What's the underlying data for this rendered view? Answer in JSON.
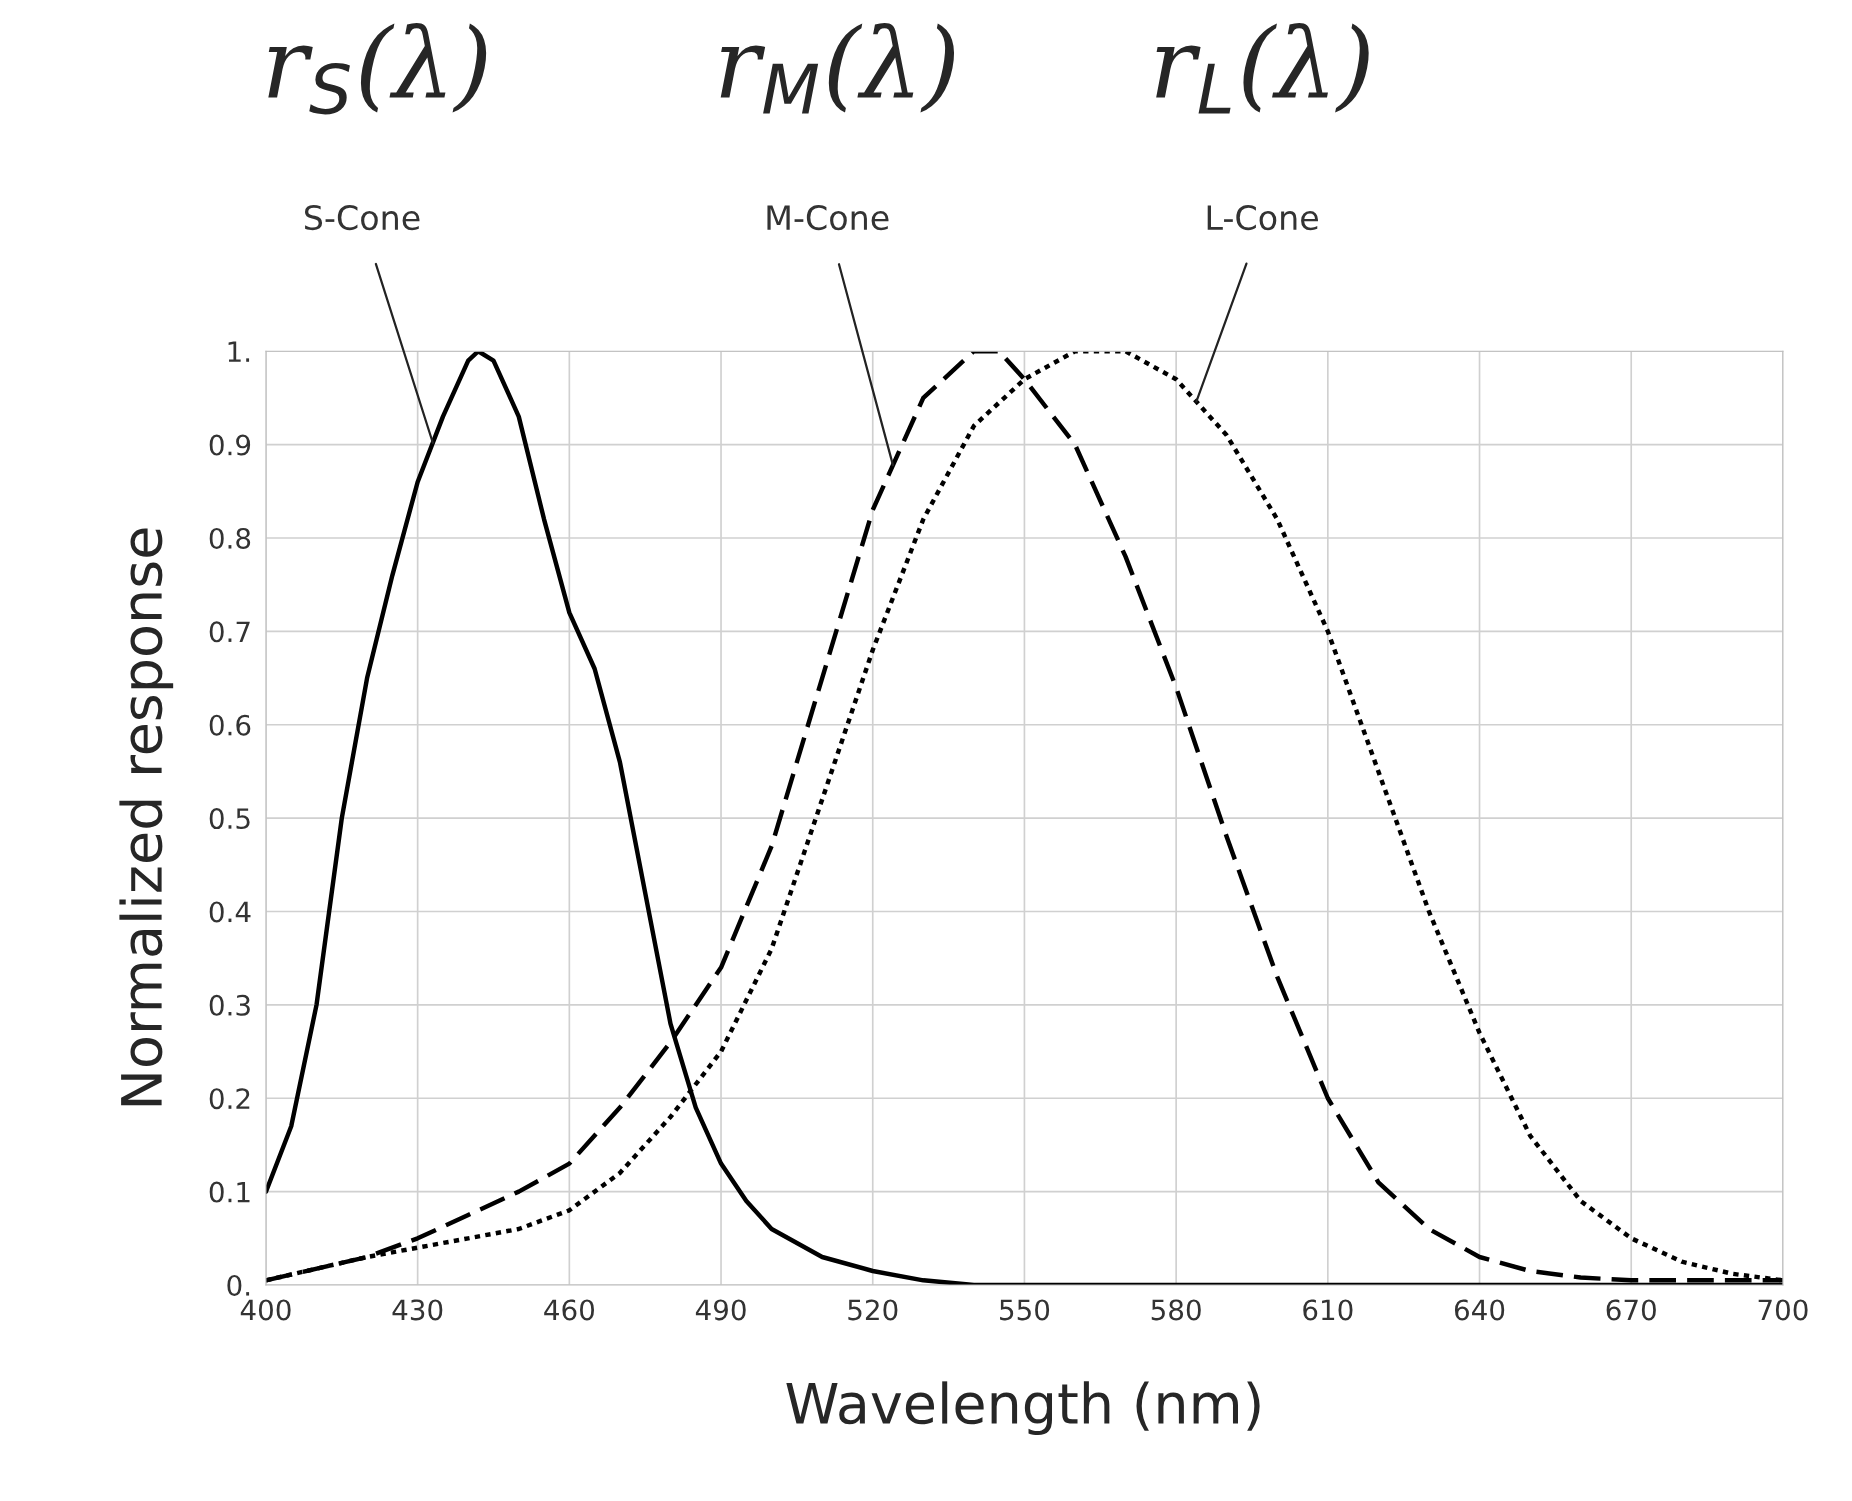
{
  "chart_data": {
    "type": "line",
    "xlabel": "Wavelength (nm)",
    "ylabel": "Normalized response",
    "xlim": [
      400,
      700
    ],
    "ylim": [
      0,
      1
    ],
    "xticks": [
      400,
      430,
      460,
      490,
      520,
      550,
      580,
      610,
      640,
      670,
      700
    ],
    "yticks": [
      {
        "value": 0,
        "label": "0."
      },
      0.1,
      0.2,
      0.3,
      0.4,
      0.5,
      0.6,
      0.7,
      0.8,
      0.9,
      {
        "value": 1,
        "label": "1."
      }
    ],
    "grid": true,
    "series": [
      {
        "name": "S-Cone",
        "color": "#000000",
        "line_style": "solid",
        "x": [
          400,
          405,
          410,
          415,
          420,
          425,
          430,
          435,
          440,
          442,
          445,
          450,
          455,
          460,
          465,
          470,
          475,
          480,
          485,
          490,
          495,
          500,
          510,
          520,
          530,
          540,
          700
        ],
        "values": [
          0.1,
          0.17,
          0.3,
          0.5,
          0.65,
          0.76,
          0.86,
          0.93,
          0.99,
          1.0,
          0.99,
          0.93,
          0.82,
          0.72,
          0.66,
          0.56,
          0.42,
          0.28,
          0.19,
          0.13,
          0.09,
          0.06,
          0.03,
          0.015,
          0.005,
          0.0,
          0.0
        ]
      },
      {
        "name": "M-Cone",
        "color": "#000000",
        "line_style": "dashed",
        "x": [
          400,
          420,
          430,
          440,
          450,
          460,
          470,
          480,
          490,
          500,
          510,
          520,
          530,
          540,
          545,
          550,
          560,
          570,
          580,
          590,
          600,
          610,
          620,
          630,
          640,
          650,
          660,
          670,
          700
        ],
        "values": [
          0.005,
          0.03,
          0.05,
          0.075,
          0.1,
          0.13,
          0.19,
          0.26,
          0.34,
          0.47,
          0.65,
          0.83,
          0.95,
          1.0,
          1.0,
          0.97,
          0.9,
          0.78,
          0.64,
          0.48,
          0.33,
          0.2,
          0.11,
          0.06,
          0.03,
          0.015,
          0.008,
          0.005,
          0.005
        ]
      },
      {
        "name": "L-Cone",
        "color": "#000000",
        "line_style": "dotted",
        "x": [
          400,
          420,
          440,
          450,
          460,
          470,
          480,
          490,
          500,
          510,
          520,
          530,
          540,
          550,
          560,
          570,
          580,
          590,
          600,
          610,
          620,
          630,
          640,
          650,
          660,
          670,
          680,
          690,
          700
        ],
        "values": [
          0.005,
          0.03,
          0.05,
          0.06,
          0.08,
          0.12,
          0.18,
          0.25,
          0.36,
          0.52,
          0.68,
          0.82,
          0.92,
          0.97,
          1.0,
          1.0,
          0.97,
          0.91,
          0.82,
          0.7,
          0.55,
          0.4,
          0.27,
          0.16,
          0.09,
          0.05,
          0.025,
          0.012,
          0.005
        ]
      }
    ],
    "annotations": [
      "r$_{S}$(λ)",
      "r$_{M}$(λ)",
      "r$_{L}$(λ)"
    ]
  }
}
